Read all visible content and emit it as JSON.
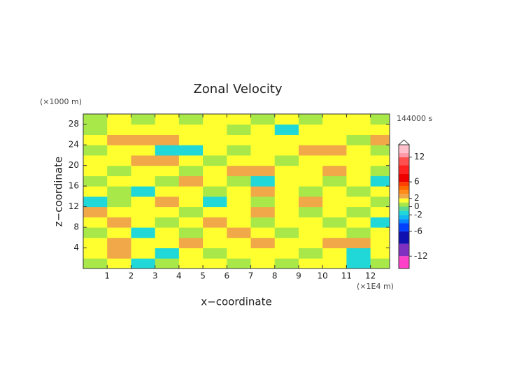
{
  "chart_data": {
    "type": "contour",
    "title": "Zonal Velocity",
    "x_label": "x−coordinate",
    "y_label": "z−coordinate",
    "x_unit": "(×1E4 m)",
    "y_unit": "(×1000 m)",
    "time_label": "144000 s",
    "xlim": [
      0,
      12.8
    ],
    "ylim": [
      0,
      30
    ],
    "xticks": [
      1,
      2,
      3,
      4,
      5,
      6,
      7,
      8,
      9,
      10,
      11,
      12
    ],
    "yticks": [
      4,
      8,
      12,
      16,
      20,
      24,
      28
    ],
    "x": [
      0.5,
      1.5,
      2.5,
      3.5,
      4.5,
      5.5,
      6.5,
      7.5,
      8.5,
      9.5,
      10.5,
      11.5,
      12.5
    ],
    "z": [
      1,
      3,
      5,
      7,
      9,
      11,
      13,
      15,
      17,
      19,
      21,
      23,
      25,
      27,
      29
    ],
    "values": [
      [
        0.5,
        1.2,
        -1.2,
        0.8,
        1.5,
        1.3,
        0.6,
        1.4,
        0.9,
        1.6,
        1.2,
        -1.5,
        0.7
      ],
      [
        1.3,
        2.5,
        1.1,
        -1.3,
        1.6,
        0.8,
        1.7,
        1.2,
        1.5,
        0.6,
        1.8,
        -1.2,
        1.4
      ],
      [
        1.6,
        2.6,
        1.8,
        1.2,
        2.4,
        1.5,
        1.0,
        2.3,
        1.4,
        1.7,
        2.6,
        2.5,
        1.1
      ],
      [
        0.7,
        1.4,
        -1.4,
        1.6,
        0.9,
        1.8,
        2.4,
        1.3,
        0.8,
        1.5,
        1.2,
        0.6,
        1.3
      ],
      [
        1.5,
        2.3,
        1.2,
        0.6,
        1.7,
        2.5,
        1.4,
        0.5,
        1.6,
        1.1,
        0.7,
        1.5,
        -1.3
      ],
      [
        2.4,
        1.3,
        1.7,
        1.5,
        0.8,
        1.2,
        1.6,
        2.2,
        1.3,
        0.6,
        1.4,
        0.8,
        1.5
      ],
      [
        -1.2,
        0.7,
        1.5,
        2.3,
        1.1,
        -1.1,
        1.6,
        0.9,
        1.4,
        2.4,
        1.7,
        1.2,
        0.8
      ],
      [
        1.4,
        0.8,
        -1.3,
        1.2,
        1.6,
        0.7,
        1.5,
        2.6,
        1.3,
        0.9,
        1.5,
        0.6,
        1.4
      ],
      [
        0.6,
        1.5,
        1.8,
        0.9,
        2.4,
        1.3,
        0.8,
        -1.5,
        1.1,
        1.4,
        0.7,
        1.6,
        -1.2
      ],
      [
        1.3,
        0.9,
        1.4,
        1.6,
        0.7,
        1.5,
        2.5,
        2.6,
        1.3,
        1.6,
        2.4,
        1.1,
        0.8
      ],
      [
        1.2,
        1.6,
        2.3,
        2.6,
        1.4,
        0.8,
        1.3,
        1.5,
        0.9,
        1.4,
        1.7,
        1.3,
        1.5
      ],
      [
        0.8,
        1.3,
        1.5,
        -1.4,
        -1.2,
        1.4,
        0.7,
        1.2,
        1.6,
        2.6,
        2.5,
        1.4,
        0.9
      ],
      [
        1.4,
        2.4,
        2.6,
        2.7,
        1.5,
        1.6,
        1.3,
        1.1,
        1.4,
        1.2,
        1.5,
        0.8,
        2.4
      ],
      [
        0.9,
        1.6,
        1.3,
        1.5,
        1.7,
        1.4,
        0.8,
        1.3,
        -1.1,
        1.5,
        1.2,
        1.6,
        1.4
      ],
      [
        0.6,
        1.2,
        0.8,
        1.4,
        0.7,
        1.3,
        1.5,
        0.9,
        1.2,
        0.8,
        1.4,
        1.1,
        0.7
      ]
    ],
    "levels": [
      -15,
      -12,
      -9,
      -6,
      -4,
      -3,
      -2,
      -1,
      0,
      1,
      2,
      3,
      4,
      5,
      6,
      8,
      10,
      12,
      13,
      15
    ],
    "colors": [
      "#ff40c8",
      "#8030c0",
      "#1010b0",
      "#0040ff",
      "#0088ff",
      "#10b8f0",
      "#20d8d8",
      "#60d890",
      "#a8e848",
      "#ffff30",
      "#f0a848",
      "#ff8c1a",
      "#ff6a00",
      "#ff4000",
      "#ee0000",
      "#ff2020",
      "#ff5050",
      "#ff9aa8",
      "#ffc0cb"
    ],
    "colorbar_ticks": [
      12,
      6,
      2,
      0,
      -2,
      -6,
      -12
    ]
  }
}
